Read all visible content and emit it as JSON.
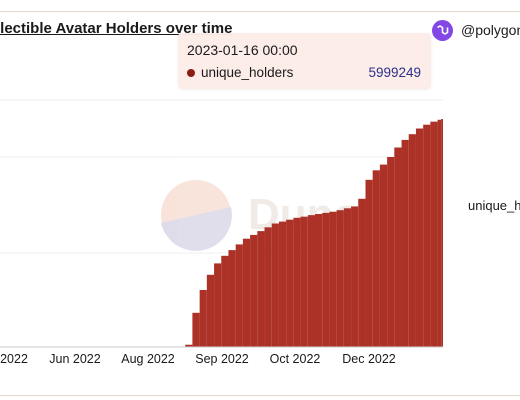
{
  "title": "llectible Avatar Holders over time",
  "brand": {
    "handle": "@polygon",
    "icon": "polygon-logo-icon",
    "color": "#8247e5"
  },
  "watermark": {
    "text": "Dune"
  },
  "legend": {
    "series_label": "unique_h"
  },
  "tooltip": {
    "date": "2023-01-16 00:00",
    "series": "unique_holders",
    "value": "5999249"
  },
  "colors": {
    "bar": "#a8271c",
    "bar_edge": "#6e1410",
    "grid": "#eeeeee",
    "axis": "#cccccc",
    "dot": "#8c1d14"
  },
  "chart_data": {
    "type": "bar",
    "series": [
      {
        "name": "unique_holders"
      }
    ],
    "x_ticks": [
      "2022",
      "Jun 2022",
      "Aug 2022",
      "Sep 2022",
      "Oct 2022",
      "Dec 2022"
    ],
    "ylim": [
      0,
      7500000
    ],
    "grid": true,
    "x": [
      "2022-08-23",
      "2022-08-27",
      "2022-08-31",
      "2022-09-04",
      "2022-09-08",
      "2022-09-12",
      "2022-09-16",
      "2022-09-20",
      "2022-09-24",
      "2022-09-28",
      "2022-10-02",
      "2022-10-06",
      "2022-10-10",
      "2022-10-14",
      "2022-10-18",
      "2022-10-22",
      "2022-10-26",
      "2022-10-30",
      "2022-11-03",
      "2022-11-07",
      "2022-11-11",
      "2022-11-15",
      "2022-11-19",
      "2022-11-23",
      "2022-11-27",
      "2022-12-01",
      "2022-12-05",
      "2022-12-09",
      "2022-12-13",
      "2022-12-17",
      "2022-12-21",
      "2022-12-25",
      "2022-12-29",
      "2023-01-02",
      "2023-01-06",
      "2023-01-10",
      "2023-01-14",
      "2023-01-16"
    ],
    "values": [
      0,
      60000,
      900000,
      1500000,
      1900000,
      2200000,
      2400000,
      2550000,
      2700000,
      2850000,
      2950000,
      3050000,
      3150000,
      3250000,
      3300000,
      3350000,
      3400000,
      3430000,
      3470000,
      3500000,
      3530000,
      3560000,
      3600000,
      3650000,
      3700000,
      3900000,
      4400000,
      4650000,
      4800000,
      5000000,
      5250000,
      5450000,
      5600000,
      5750000,
      5850000,
      5930000,
      5980000,
      5999249
    ]
  }
}
